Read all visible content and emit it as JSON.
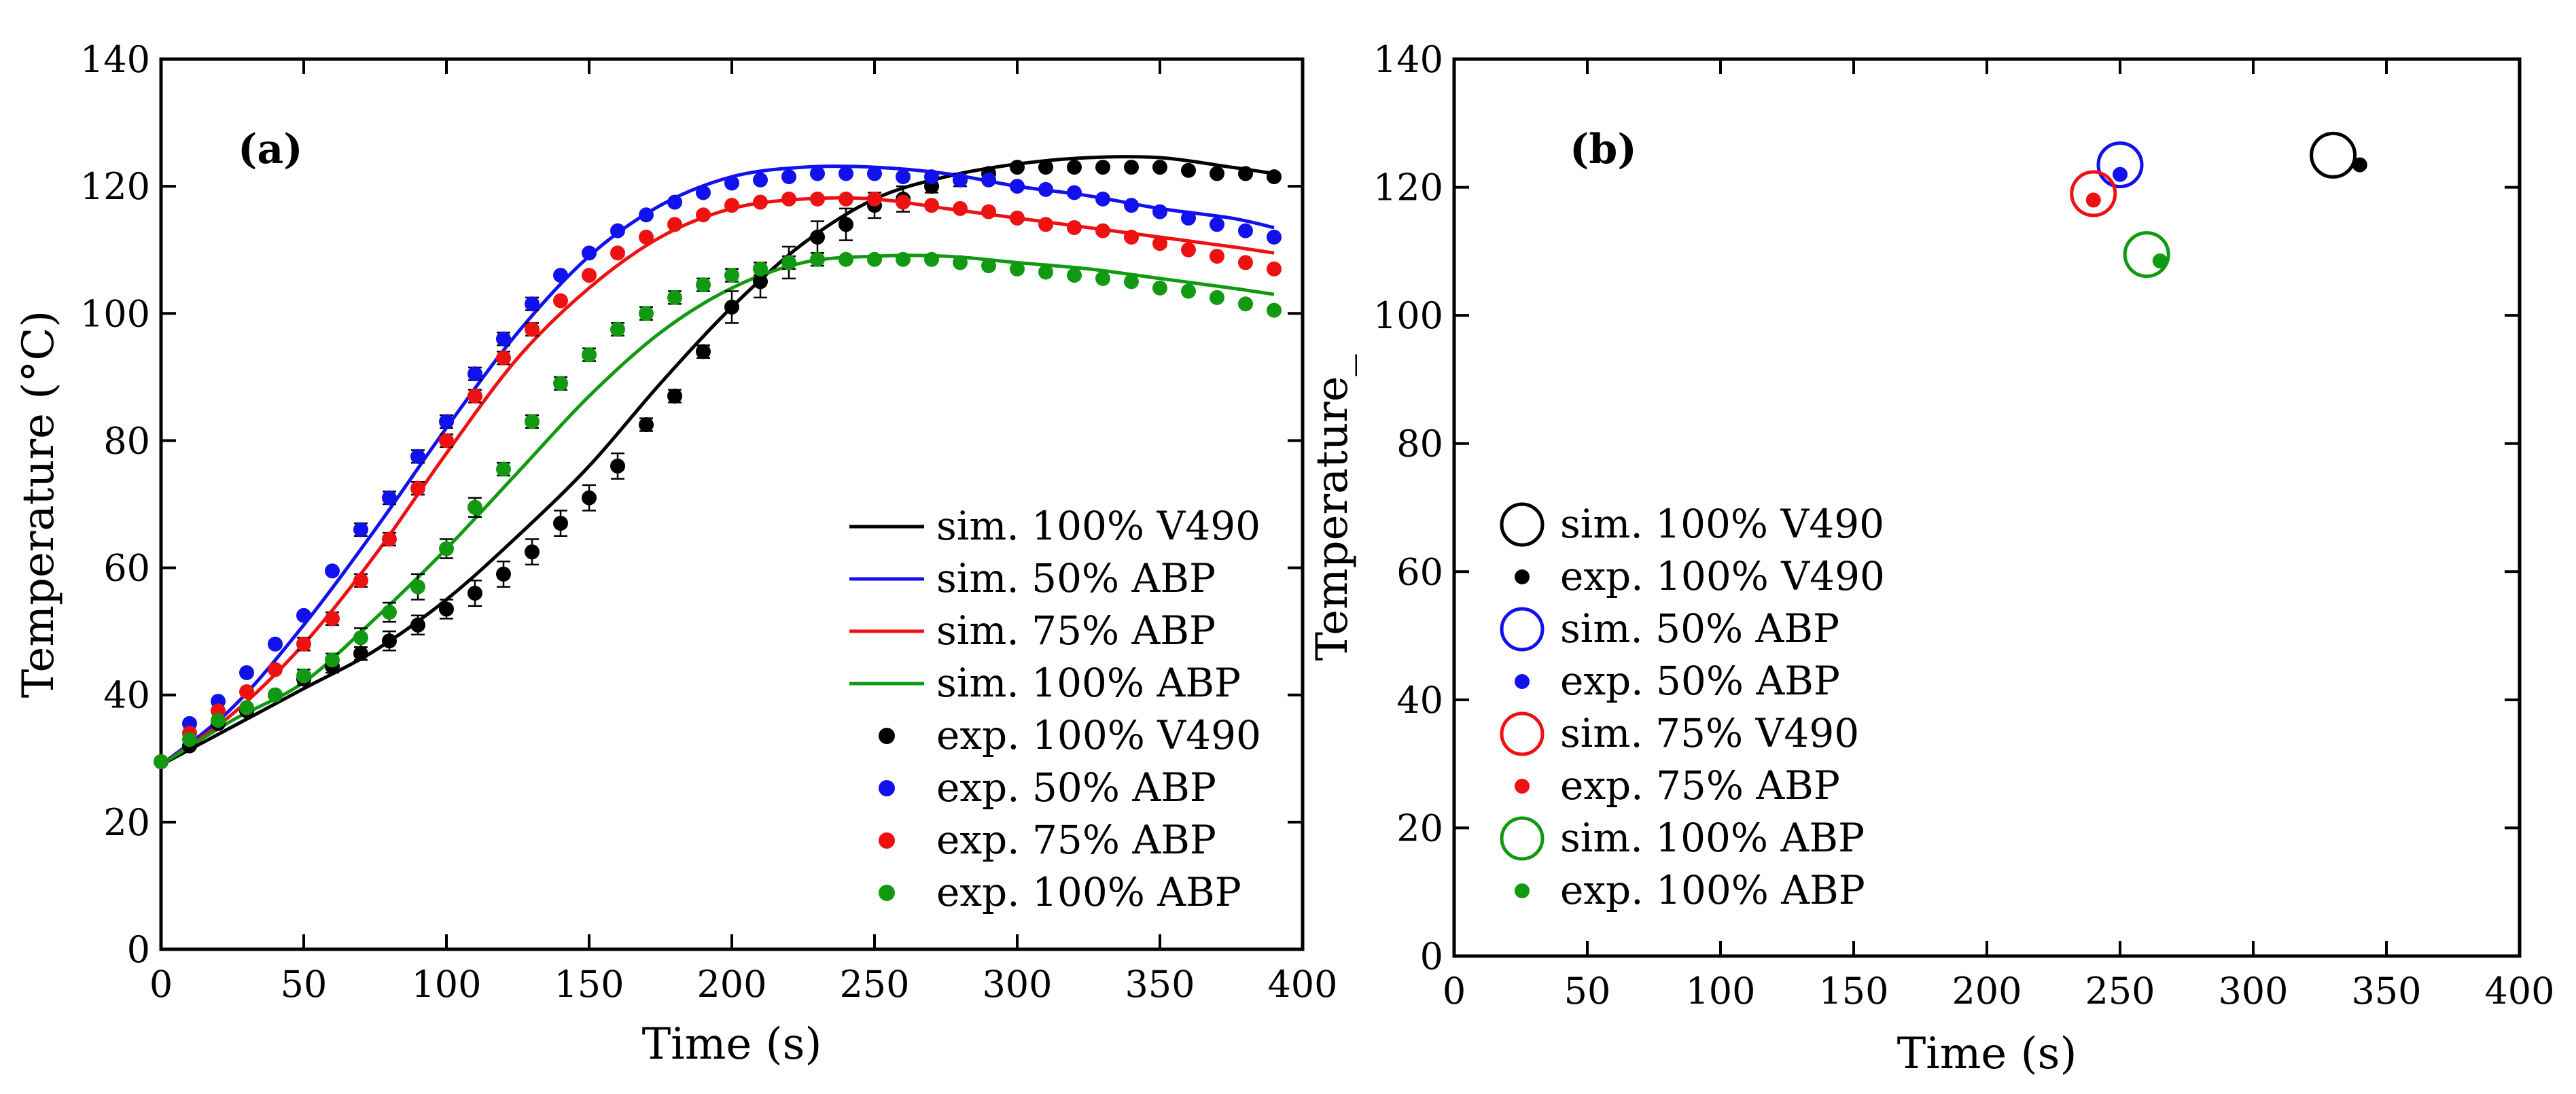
{
  "figure": {
    "panels": [
      "(a)",
      "(b)"
    ]
  },
  "chart_data": [
    {
      "type": "scatter",
      "panel_label": "(a)",
      "title": "",
      "xlabel": "Time (s)",
      "ylabel": "Temperature  (°C)",
      "xlim": [
        0,
        400
      ],
      "ylim": [
        0,
        140
      ],
      "xticks": [
        0,
        50,
        100,
        150,
        200,
        250,
        300,
        350,
        400
      ],
      "yticks": [
        0,
        20,
        40,
        60,
        80,
        100,
        120,
        140
      ],
      "grid": false,
      "legend_position": "bottom-right",
      "lines": [
        {
          "name": "sim. 100% V490",
          "color": "#000000",
          "x": [
            0,
            25,
            50,
            75,
            100,
            125,
            150,
            175,
            200,
            225,
            250,
            275,
            300,
            325,
            350,
            375,
            390
          ],
          "y": [
            29,
            35,
            41,
            47,
            55,
            65,
            76,
            89,
            101,
            111,
            118,
            121.5,
            123.5,
            124.5,
            124.5,
            123,
            122
          ]
        },
        {
          "name": "sim. 50% ABP",
          "color": "#1111ee",
          "x": [
            0,
            25,
            50,
            75,
            100,
            125,
            150,
            175,
            200,
            225,
            250,
            275,
            300,
            325,
            350,
            375,
            390
          ],
          "y": [
            29,
            38,
            51,
            66,
            82,
            97,
            109,
            117,
            121.5,
            123,
            123,
            122,
            120,
            118.5,
            116.5,
            115,
            113.5
          ]
        },
        {
          "name": "sim. 75% ABP",
          "color": "#ee1111",
          "x": [
            0,
            25,
            50,
            75,
            100,
            125,
            150,
            175,
            200,
            225,
            250,
            275,
            300,
            325,
            350,
            375,
            390
          ],
          "y": [
            29,
            37,
            48,
            62,
            78,
            93,
            104,
            112,
            116.5,
            118,
            118,
            116.5,
            115,
            113.5,
            112,
            110.5,
            109.5
          ]
        },
        {
          "name": "sim. 100% ABP",
          "color": "#119911",
          "x": [
            0,
            25,
            50,
            75,
            100,
            125,
            150,
            175,
            200,
            225,
            250,
            275,
            300,
            325,
            350,
            375,
            390
          ],
          "y": [
            29,
            36,
            42,
            52,
            63,
            75,
            87,
            97,
            104,
            108,
            109,
            109,
            108,
            107,
            105.5,
            104,
            103
          ]
        }
      ],
      "points": [
        {
          "name": "exp. 100% V490",
          "color": "#000000",
          "x": [
            0,
            10,
            20,
            30,
            40,
            50,
            60,
            70,
            80,
            90,
            100,
            110,
            120,
            130,
            140,
            150,
            160,
            170,
            180,
            190,
            200,
            210,
            220,
            230,
            240,
            250,
            260,
            270,
            280,
            290,
            300,
            310,
            320,
            330,
            340,
            350,
            360,
            370,
            380,
            390
          ],
          "y": [
            29.5,
            32,
            35.5,
            37.5,
            40,
            42.5,
            44.5,
            46.5,
            48.5,
            51,
            53.5,
            56,
            59,
            62.5,
            67,
            71,
            76,
            82.5,
            87,
            94,
            101,
            105,
            108,
            112,
            114,
            117,
            118,
            120,
            121,
            122,
            123,
            123,
            123,
            123,
            123,
            123,
            122.5,
            122,
            122,
            121.5
          ],
          "err": [
            0.5,
            0.5,
            0.7,
            0.8,
            0.8,
            1,
            1,
            1,
            1.5,
            1.5,
            1.5,
            2,
            2,
            2,
            2,
            2,
            2,
            1,
            1,
            1,
            2.5,
            2.5,
            2.5,
            2.5,
            2.5,
            2,
            2,
            1,
            1,
            0.8,
            0.8,
            0.8,
            0.8,
            0.8,
            0.8,
            0.8,
            0.8,
            0.8,
            0.8,
            0.8
          ]
        },
        {
          "name": "exp. 50% ABP",
          "color": "#1111ee",
          "x": [
            0,
            10,
            20,
            30,
            40,
            50,
            60,
            70,
            80,
            90,
            100,
            110,
            120,
            130,
            140,
            150,
            160,
            170,
            180,
            190,
            200,
            210,
            220,
            230,
            240,
            250,
            260,
            270,
            280,
            290,
            300,
            310,
            320,
            330,
            340,
            350,
            360,
            370,
            380,
            390
          ],
          "y": [
            29.5,
            35.5,
            39,
            43.5,
            48,
            52.5,
            59.5,
            66,
            71,
            77.5,
            83,
            90.5,
            96,
            101.5,
            106,
            109.5,
            113,
            115.5,
            117.5,
            119,
            120.5,
            121,
            121.5,
            122,
            122,
            122,
            121.5,
            121.5,
            121,
            121,
            120,
            119.5,
            119,
            118,
            117,
            116,
            115,
            114,
            113,
            112
          ],
          "err": [
            0.5,
            0.8,
            0.8,
            0.8,
            0.8,
            0.8,
            0.8,
            1,
            1,
            1,
            1,
            1,
            1,
            1,
            0.8,
            0.8,
            0.8,
            0.8,
            0.8,
            0.8,
            0.8,
            0.8,
            0.8,
            0.8,
            0.8,
            0.8,
            0.8,
            0.8,
            0.8,
            0.8,
            0.8,
            0.8,
            0.8,
            0.8,
            0.8,
            0.8,
            0.8,
            0.8,
            0.8,
            0.8
          ]
        },
        {
          "name": "exp. 75% ABP",
          "color": "#ee1111",
          "x": [
            0,
            10,
            20,
            30,
            40,
            50,
            60,
            70,
            80,
            90,
            100,
            110,
            120,
            130,
            140,
            150,
            160,
            170,
            180,
            190,
            200,
            210,
            220,
            230,
            240,
            250,
            260,
            270,
            280,
            290,
            300,
            310,
            320,
            330,
            340,
            350,
            360,
            370,
            380,
            390
          ],
          "y": [
            29.5,
            34,
            37.5,
            40.5,
            44,
            48,
            52,
            58,
            64.5,
            72.5,
            80,
            87,
            93,
            97.5,
            102,
            106,
            109.5,
            112,
            114,
            115.5,
            117,
            117.5,
            118,
            118,
            118,
            118,
            117.5,
            117,
            116.5,
            116,
            115,
            114,
            113.5,
            113,
            112,
            111,
            110,
            109,
            108,
            107
          ],
          "err": [
            0.5,
            0.8,
            0.8,
            0.8,
            0.8,
            1,
            1,
            1,
            1,
            1,
            1,
            1,
            1,
            1,
            0.8,
            0.8,
            0.8,
            0.8,
            0.8,
            0.8,
            0.8,
            0.8,
            0.8,
            0.8,
            0.8,
            0.8,
            0.8,
            0.8,
            0.8,
            0.8,
            0.8,
            0.8,
            0.8,
            0.8,
            0.8,
            0.8,
            0.8,
            0.8,
            0.8,
            0.8
          ]
        },
        {
          "name": "exp. 100% ABP",
          "color": "#119911",
          "x": [
            0,
            10,
            20,
            30,
            40,
            50,
            60,
            70,
            80,
            90,
            100,
            110,
            120,
            130,
            140,
            150,
            160,
            170,
            180,
            190,
            200,
            210,
            220,
            230,
            240,
            250,
            260,
            270,
            280,
            290,
            300,
            310,
            320,
            330,
            340,
            350,
            360,
            370,
            380,
            390
          ],
          "y": [
            29.5,
            33,
            36,
            38,
            40,
            43,
            45.5,
            49,
            53,
            57,
            63,
            69.5,
            75.5,
            83,
            89,
            93.5,
            97.5,
            100,
            102.5,
            104.5,
            106,
            107,
            108,
            108.5,
            108.5,
            108.5,
            108.5,
            108.5,
            108,
            107.5,
            107,
            106.5,
            106,
            105.5,
            105,
            104,
            103.5,
            102.5,
            101.5,
            100.5
          ],
          "err": [
            0.5,
            0.8,
            0.8,
            0.8,
            0.8,
            1,
            1,
            1.5,
            1.5,
            2,
            1.5,
            1.5,
            1,
            1,
            1,
            1,
            1,
            1,
            1,
            1,
            1,
            1,
            1,
            1,
            0.8,
            0.8,
            0.8,
            0.8,
            0.8,
            0.8,
            0.8,
            0.8,
            0.8,
            0.8,
            0.8,
            0.8,
            0.8,
            0.8,
            0.8,
            0.8
          ]
        }
      ],
      "legend": [
        "sim. 100% V490",
        "sim. 50% ABP",
        "sim. 75% ABP",
        "sim. 100% ABP",
        "exp. 100% V490",
        "exp. 50% ABP",
        "exp. 75% ABP",
        "exp. 100% ABP"
      ]
    },
    {
      "type": "scatter",
      "panel_label": "(b)",
      "title": "",
      "xlabel": "Time (s)",
      "ylabel": "Temperature_",
      "xlim": [
        0,
        400
      ],
      "ylim": [
        0,
        140
      ],
      "xticks": [
        0,
        50,
        100,
        150,
        200,
        250,
        300,
        350,
        400
      ],
      "yticks": [
        0,
        20,
        40,
        60,
        80,
        100,
        120,
        140
      ],
      "grid": false,
      "legend_position": "bottom-left",
      "series": [
        {
          "name": "sim. 100% V490",
          "marker": "open-circle",
          "color": "#000000",
          "x": 330,
          "y": 125
        },
        {
          "name": "exp. 100% V490",
          "marker": "dot",
          "color": "#000000",
          "x": 340,
          "y": 123.5
        },
        {
          "name": "sim. 50% ABP",
          "marker": "open-circle",
          "color": "#1111ee",
          "x": 250,
          "y": 123.5
        },
        {
          "name": "exp. 50% ABP",
          "marker": "dot",
          "color": "#1111ee",
          "x": 250,
          "y": 122
        },
        {
          "name": "sim. 75% V490",
          "marker": "open-circle",
          "color": "#ee1111",
          "x": 240,
          "y": 119
        },
        {
          "name": "exp. 75% ABP",
          "marker": "dot",
          "color": "#ee1111",
          "x": 240,
          "y": 118
        },
        {
          "name": "sim. 100% ABP",
          "marker": "open-circle",
          "color": "#119911",
          "x": 260,
          "y": 109.5
        },
        {
          "name": "exp. 100% ABP",
          "marker": "dot",
          "color": "#119911",
          "x": 265,
          "y": 108.5
        }
      ]
    }
  ]
}
